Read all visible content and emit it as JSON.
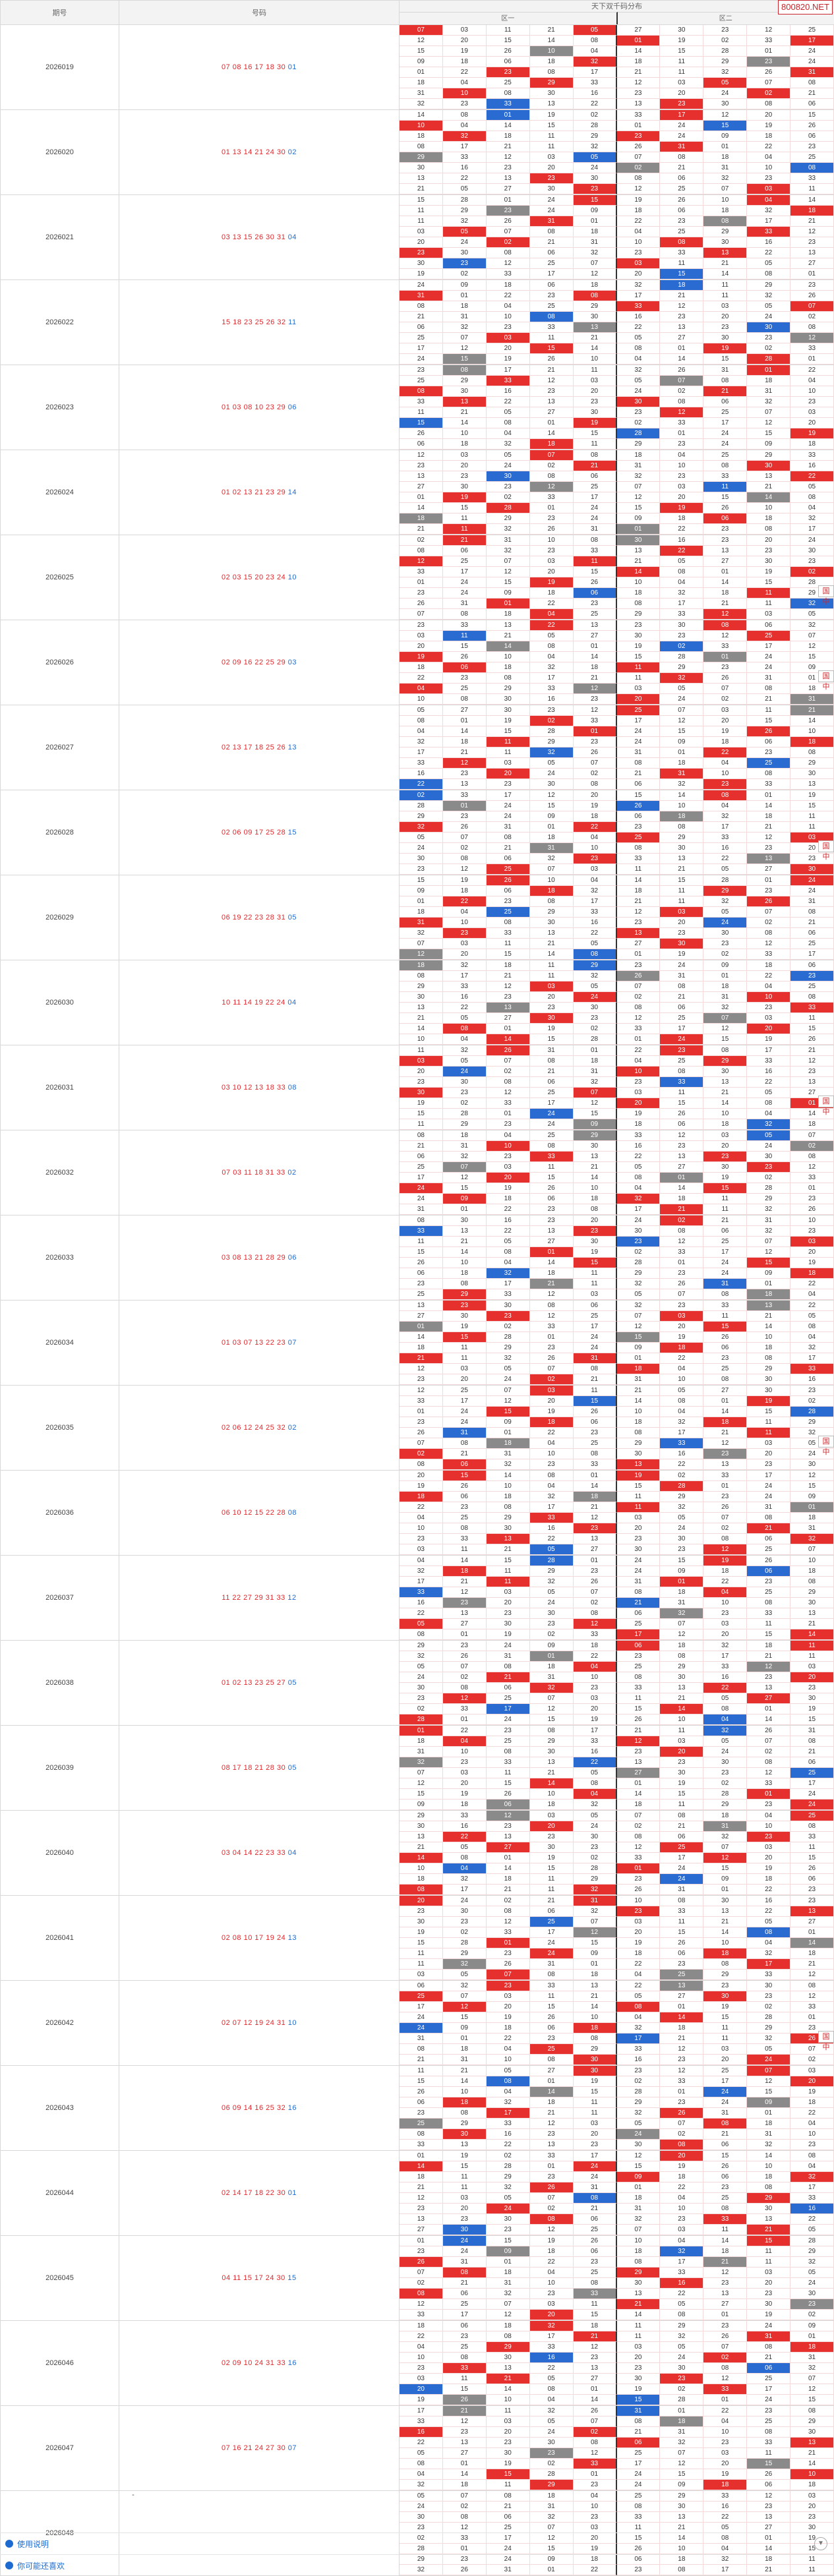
{
  "brand": "800820.NET",
  "header": {
    "col_issue": "期号",
    "col_numbers": "号码",
    "col_grid": "天下双千码分布",
    "sub_left": "区一",
    "sub_right": "区二"
  },
  "grid_seed_rows": [
    [
      "07",
      "03",
      "11",
      "21",
      "05",
      "27",
      "30",
      "23",
      "12",
      "25"
    ],
    [
      "12",
      "20",
      "15",
      "14",
      "08",
      "01",
      "19",
      "02",
      "33",
      "17"
    ],
    [
      "15",
      "19",
      "26",
      "10",
      "04",
      "14",
      "15",
      "28",
      "01",
      "24"
    ],
    [
      "09",
      "18",
      "06",
      "18",
      "32",
      "18",
      "11",
      "29",
      "23",
      "24"
    ],
    [
      "01",
      "22",
      "23",
      "08",
      "17",
      "21",
      "11",
      "32",
      "26",
      "31"
    ],
    [
      "18",
      "04",
      "25",
      "29",
      "33",
      "12",
      "03",
      "05",
      "07",
      "08"
    ],
    [
      "31",
      "10",
      "08",
      "30",
      "16",
      "23",
      "20",
      "24",
      "02",
      "21"
    ],
    [
      "32",
      "23",
      "33",
      "13",
      "22",
      "13",
      "23",
      "30",
      "08",
      "06"
    ]
  ],
  "rows": [
    {
      "issue": "2026019",
      "nums": [
        {
          "v": "07 08 16 17 18 30",
          "c": "r"
        },
        {
          "v": " 01",
          "c": "b"
        }
      ]
    },
    {
      "issue": "2026020",
      "nums": [
        {
          "v": "01 13 14 21 24 30",
          "c": "r"
        },
        {
          "v": " 02",
          "c": "b"
        }
      ]
    },
    {
      "issue": "2026021",
      "nums": [
        {
          "v": "03 13 15 26 30 31",
          "c": "r"
        },
        {
          "v": " 04",
          "c": "b"
        }
      ]
    },
    {
      "issue": "2026022",
      "nums": [
        {
          "v": "15 18 23 25 26 32",
          "c": "r"
        },
        {
          "v": " 11",
          "c": "b"
        }
      ]
    },
    {
      "issue": "2026023",
      "nums": [
        {
          "v": "01 03 08 10 23 29",
          "c": "r"
        },
        {
          "v": " 06",
          "c": "b"
        }
      ]
    },
    {
      "issue": "2026024",
      "nums": [
        {
          "v": "01 02 13 21 23 29",
          "c": "r"
        },
        {
          "v": " 14",
          "c": "b"
        }
      ]
    },
    {
      "issue": "2026025",
      "nums": [
        {
          "v": "02 03 15 20 23 24",
          "c": "r"
        },
        {
          "v": " 10",
          "c": "b"
        }
      ]
    },
    {
      "issue": "2026026",
      "nums": [
        {
          "v": "02 09 16 22 25 29",
          "c": "r"
        },
        {
          "v": " 03",
          "c": "b"
        }
      ]
    },
    {
      "issue": "2026027",
      "nums": [
        {
          "v": "02 13 17 18 25 26",
          "c": "r"
        },
        {
          "v": " 13",
          "c": "b"
        }
      ]
    },
    {
      "issue": "2026028",
      "nums": [
        {
          "v": "02 06 09 17 25 28",
          "c": "r"
        },
        {
          "v": " 15",
          "c": "b"
        }
      ]
    },
    {
      "issue": "2026029",
      "nums": [
        {
          "v": "06 19 22 23 28 31",
          "c": "r"
        },
        {
          "v": " 05",
          "c": "b"
        }
      ]
    },
    {
      "issue": "2026030",
      "nums": [
        {
          "v": "10 11 14 19 22 24",
          "c": "r"
        },
        {
          "v": " 04",
          "c": "b"
        }
      ]
    },
    {
      "issue": "2026031",
      "nums": [
        {
          "v": "03 10 12 13 18 33",
          "c": "r"
        },
        {
          "v": " 08",
          "c": "b"
        }
      ]
    },
    {
      "issue": "2026032",
      "nums": [
        {
          "v": "07 03 11 18 31 33",
          "c": "r"
        },
        {
          "v": " 02",
          "c": "b"
        }
      ]
    },
    {
      "issue": "2026033",
      "nums": [
        {
          "v": "03 08 13 21 28 29",
          "c": "r"
        },
        {
          "v": " 06",
          "c": "b"
        }
      ]
    },
    {
      "issue": "2026034",
      "nums": [
        {
          "v": "01 03 07 13 22 23",
          "c": "r"
        },
        {
          "v": " 07",
          "c": "b"
        }
      ]
    },
    {
      "issue": "2026035",
      "nums": [
        {
          "v": "02 06 12 24 25 32",
          "c": "r"
        },
        {
          "v": " 02",
          "c": "b"
        }
      ]
    },
    {
      "issue": "2026036",
      "nums": [
        {
          "v": "06 10 12 15 22 28",
          "c": "r"
        },
        {
          "v": " 08",
          "c": "b"
        }
      ]
    },
    {
      "issue": "2026037",
      "nums": [
        {
          "v": "11 22 27 29 31 33",
          "c": "r"
        },
        {
          "v": " 12",
          "c": "b"
        }
      ]
    },
    {
      "issue": "2026038",
      "nums": [
        {
          "v": "01 02 13 23 25 27",
          "c": "r"
        },
        {
          "v": " 05",
          "c": "b"
        }
      ]
    },
    {
      "issue": "2026039",
      "nums": [
        {
          "v": "08 17 18 21 28 30",
          "c": "r"
        },
        {
          "v": " 05",
          "c": "b"
        }
      ]
    },
    {
      "issue": "2026040",
      "nums": [
        {
          "v": "03 04 14 22 23 33",
          "c": "r"
        },
        {
          "v": " 04",
          "c": "b"
        }
      ]
    },
    {
      "issue": "2026041",
      "nums": [
        {
          "v": "02 08 10 17 19 24",
          "c": "r"
        },
        {
          "v": " 13",
          "c": "b"
        }
      ]
    },
    {
      "issue": "2026042",
      "nums": [
        {
          "v": "02 07 12 19 24 31",
          "c": "r"
        },
        {
          "v": " 10",
          "c": "b"
        }
      ]
    },
    {
      "issue": "2026043",
      "nums": [
        {
          "v": "06 09 14 16 25 32",
          "c": "r"
        },
        {
          "v": " 16",
          "c": "b"
        }
      ]
    },
    {
      "issue": "2026044",
      "nums": [
        {
          "v": "02 14 17 18 22 30",
          "c": "r"
        },
        {
          "v": " 01",
          "c": "b"
        }
      ]
    },
    {
      "issue": "2026045",
      "nums": [
        {
          "v": "04 11 15 17 24 30",
          "c": "r"
        },
        {
          "v": " 15",
          "c": "b"
        }
      ]
    },
    {
      "issue": "2026046",
      "nums": [
        {
          "v": "02 09 10 24 31 33",
          "c": "r"
        },
        {
          "v": " 16",
          "c": "b"
        }
      ]
    },
    {
      "issue": "2026047",
      "nums": [
        {
          "v": "07 16 21 24 27 30",
          "c": "r"
        },
        {
          "v": " 07",
          "c": "b"
        }
      ]
    },
    {
      "issue": "2026048",
      "nums": [
        {
          "v": "-",
          "c": "g"
        }
      ]
    }
  ],
  "side_badge": "国 中",
  "footer": {
    "help": "使用说明",
    "more": "你可能还喜欢"
  }
}
